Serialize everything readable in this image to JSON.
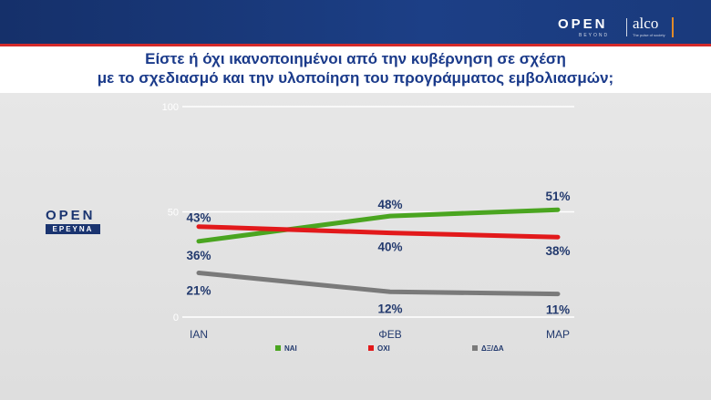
{
  "header": {
    "logo_open": "OPEN",
    "logo_beyond": "BEYOND",
    "logo_alco": "alco",
    "logo_alco_sub": "The pulse of society",
    "bar_color": "#1c3f86",
    "accent_color": "#d42a2a"
  },
  "brand": {
    "line1": "OPEN",
    "line2": "ΕΡΕΥΝΑ"
  },
  "chart_data": {
    "type": "line",
    "title_line1": "Είστε ή όχι ικανοποιημένοι από την κυβέρνηση σε σχέση",
    "title_line2": "με το σχεδιασμό και την υλοποίηση του προγράμματος εμβολιασμών;",
    "categories": [
      "ΙΑΝ",
      "ΦΕΒ",
      "ΜΑΡ"
    ],
    "ylim": [
      0,
      100
    ],
    "yticks": [
      "0",
      "50",
      "100"
    ],
    "grid": true,
    "legend_position": "bottom",
    "series": [
      {
        "name": "ΝΑΙ",
        "values": [
          36,
          48,
          51
        ],
        "labels": [
          "36%",
          "48%",
          "51%"
        ],
        "color": "#4aa520"
      },
      {
        "name": "ΟΧΙ",
        "values": [
          43,
          40,
          38
        ],
        "labels": [
          "43%",
          "40%",
          "38%"
        ],
        "color": "#e2191b"
      },
      {
        "name": "ΔΞ/ΔΑ",
        "values": [
          21,
          12,
          11
        ],
        "labels": [
          "21%",
          "12%",
          "11%"
        ],
        "color": "#7a7a7a"
      }
    ]
  }
}
